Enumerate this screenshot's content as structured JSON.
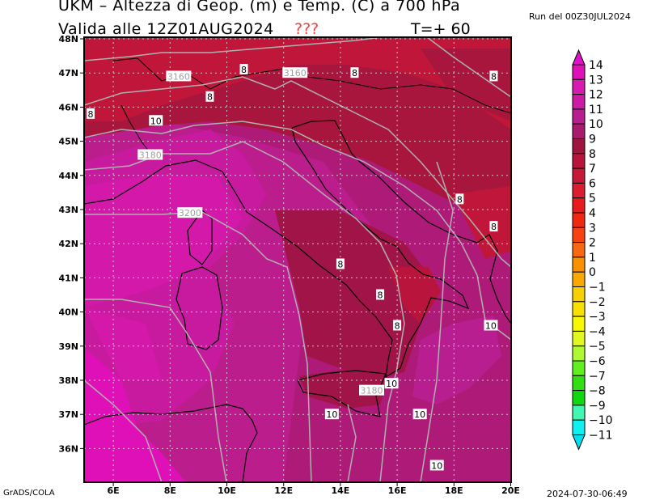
{
  "header": {
    "title": "UKM – Altezza di Geop. (m) e Temp. (C) a 700 hPa",
    "valid": "Valida alle 12Z01AUG2024",
    "unknown_marker": "???",
    "timestep": "T=+ 60",
    "run": "Run del 00Z30JUL2024"
  },
  "footer": {
    "left": "GrADS/COLA",
    "right": "2024-07-30-06:49"
  },
  "map": {
    "lon_range": [
      5,
      20
    ],
    "lat_range": [
      35,
      48
    ],
    "lon_ticks": [
      "6E",
      "8E",
      "10E",
      "12E",
      "14E",
      "16E",
      "18E",
      "20E"
    ],
    "lat_ticks": [
      "48N",
      "47N",
      "46N",
      "45N",
      "44N",
      "43N",
      "42N",
      "41N",
      "40N",
      "39N",
      "38N",
      "37N",
      "36N"
    ],
    "geopotential_labels": [
      {
        "text": "3160",
        "lon": 8.3,
        "lat": 46.9
      },
      {
        "text": "3160",
        "lon": 12.4,
        "lat": 47.0
      },
      {
        "text": "3180",
        "lon": 7.3,
        "lat": 44.6
      },
      {
        "text": "3180",
        "lon": 15.1,
        "lat": 37.7
      },
      {
        "text": "3200",
        "lon": 8.7,
        "lat": 42.9
      }
    ],
    "temperature_labels": [
      {
        "text": "8",
        "lon": 10.6,
        "lat": 47.1
      },
      {
        "text": "8",
        "lon": 9.4,
        "lat": 46.3
      },
      {
        "text": "8",
        "lon": 5.2,
        "lat": 45.8
      },
      {
        "text": "8",
        "lon": 14.5,
        "lat": 47.0
      },
      {
        "text": "8",
        "lon": 19.4,
        "lat": 46.9
      },
      {
        "text": "8",
        "lon": 18.2,
        "lat": 43.3
      },
      {
        "text": "8",
        "lon": 19.4,
        "lat": 42.5
      },
      {
        "text": "8",
        "lon": 14.0,
        "lat": 41.4
      },
      {
        "text": "8",
        "lon": 15.4,
        "lat": 40.5
      },
      {
        "text": "8",
        "lon": 16.0,
        "lat": 39.6
      },
      {
        "text": "10",
        "lon": 7.5,
        "lat": 45.6
      },
      {
        "text": "10",
        "lon": 19.3,
        "lat": 39.6
      },
      {
        "text": "10",
        "lon": 15.8,
        "lat": 37.9
      },
      {
        "text": "10",
        "lon": 13.7,
        "lat": 37.0
      },
      {
        "text": "10",
        "lon": 16.8,
        "lat": 37.0
      },
      {
        "text": "10",
        "lon": 17.4,
        "lat": 35.5
      }
    ]
  },
  "colorbar": {
    "labels": [
      "14",
      "13",
      "12",
      "11",
      "10",
      "9",
      "8",
      "7",
      "6",
      "5",
      "4",
      "3",
      "2",
      "1",
      "0",
      "−1",
      "−2",
      "−3",
      "−4",
      "−5",
      "−6",
      "−7",
      "−8",
      "−9",
      "−10",
      "−11"
    ],
    "top_arrow_color": "#e010c8",
    "bottom_arrow_color": "#00e0f0",
    "colors": [
      "#e010b8",
      "#d81ab0",
      "#cc1aa4",
      "#b81e90",
      "#a81a6c",
      "#a01440",
      "#b8143c",
      "#c81838",
      "#dc1c30",
      "#e81c1c",
      "#f02810",
      "#f84010",
      "#f86810",
      "#f89000",
      "#f8a800",
      "#f8d000",
      "#f8e000",
      "#f8f800",
      "#e0f820",
      "#b0f830",
      "#60f020",
      "#30e010",
      "#10d810",
      "#40f8b0",
      "#10f0f0"
    ]
  }
}
